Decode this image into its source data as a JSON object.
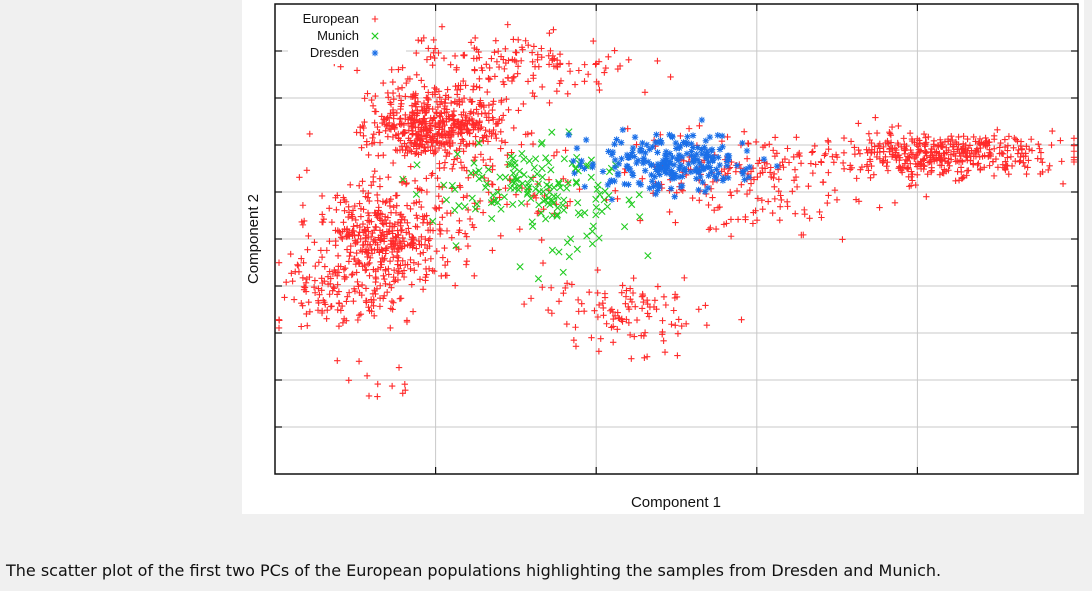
{
  "figure": {
    "caption": "The scatter plot of the first two PCs of the European populations highlighting the samples from Dresden and Munich."
  },
  "chart_data": {
    "type": "scatter",
    "title": "",
    "xlabel": "Component 1",
    "ylabel": "Component 2",
    "xlim": [
      0,
      1
    ],
    "ylim": [
      0,
      1
    ],
    "x_ticks": [
      0.2,
      0.4,
      0.6,
      0.8
    ],
    "y_ticks": [
      0.1,
      0.2,
      0.3,
      0.4,
      0.5,
      0.6,
      0.7,
      0.8,
      0.9
    ],
    "x_tick_labels_shown": false,
    "y_tick_labels_shown": false,
    "grid": true,
    "legend_position": "top-left",
    "series": [
      {
        "name": "European",
        "marker": "plus",
        "color": "#ff2a2a",
        "clusters": [
          {
            "center": [
              0.2,
              0.74
            ],
            "spread": [
              0.04,
              0.04
            ],
            "count": 520
          },
          {
            "center": [
              0.14,
              0.51
            ],
            "spread": [
              0.045,
              0.06
            ],
            "count": 420
          },
          {
            "center": [
              0.09,
              0.39
            ],
            "spread": [
              0.04,
              0.04
            ],
            "count": 140
          },
          {
            "center": [
              0.3,
              0.87
            ],
            "spread": [
              0.08,
              0.04
            ],
            "count": 160
          },
          {
            "center": [
              0.28,
              0.6
            ],
            "spread": [
              0.06,
              0.05
            ],
            "count": 70
          },
          {
            "center": [
              0.58,
              0.63
            ],
            "spread": [
              0.08,
              0.05
            ],
            "count": 200
          },
          {
            "center": [
              0.83,
              0.68
            ],
            "spread": [
              0.07,
              0.025
            ],
            "count": 420
          },
          {
            "center": [
              0.44,
              0.34
            ],
            "spread": [
              0.05,
              0.04
            ],
            "count": 110
          },
          {
            "center": [
              0.12,
              0.2
            ],
            "spread": [
              0.03,
              0.03
            ],
            "count": 12
          }
        ]
      },
      {
        "name": "Munich",
        "marker": "x",
        "color": "#22cc22",
        "clusters": [
          {
            "center": [
              0.32,
              0.61
            ],
            "spread": [
              0.06,
              0.04
            ],
            "count": 140
          },
          {
            "center": [
              0.38,
              0.52
            ],
            "spread": [
              0.05,
              0.06
            ],
            "count": 25
          }
        ]
      },
      {
        "name": "Dresden",
        "marker": "star",
        "color": "#1a6fe8",
        "clusters": [
          {
            "center": [
              0.5,
              0.66
            ],
            "spread": [
              0.05,
              0.03
            ],
            "count": 230
          }
        ]
      }
    ]
  }
}
